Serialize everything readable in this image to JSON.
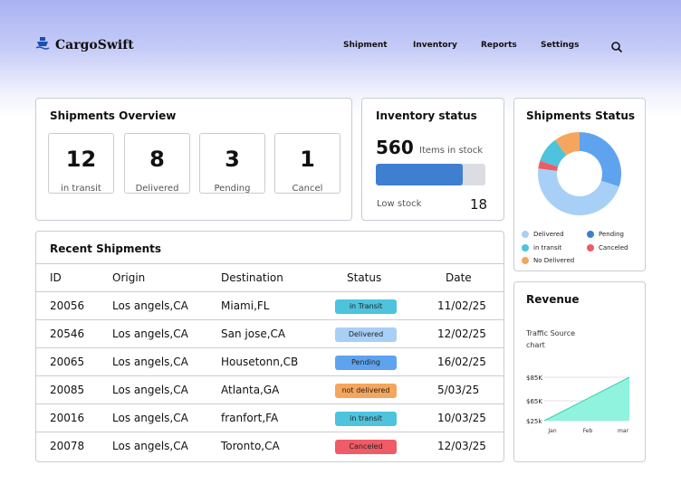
{
  "header": {
    "brand": "CargoSwift",
    "nav": [
      "Shipment",
      "Inventory",
      "Reports",
      "Settings"
    ]
  },
  "overview": {
    "title": "Shipments Overview",
    "stats": [
      {
        "value": "12",
        "label": "in transit"
      },
      {
        "value": "8",
        "label": "Delivered"
      },
      {
        "value": "3",
        "label": "Pending"
      },
      {
        "value": "1",
        "label": "Cancel"
      }
    ]
  },
  "inventory": {
    "title": "Inventory status",
    "count": "560",
    "count_label": "Items in stock",
    "stock_fill_fraction": 0.79,
    "low_label": "Low stock",
    "low_value": "18"
  },
  "status_chart": {
    "title": "Shipments Status",
    "legend": [
      {
        "label": "Delivered",
        "color": "#a8d0f7"
      },
      {
        "label": "Pending",
        "color": "#3f7fd0"
      },
      {
        "label": "in transit",
        "color": "#4dc3dd"
      },
      {
        "label": "Canceled",
        "color": "#ef5b67"
      },
      {
        "label": "No Delivered",
        "color": "#f6a55c"
      }
    ]
  },
  "chart_data": {
    "type": "pie",
    "categories": [
      "Pending",
      "Delivered",
      "Canceled",
      "in transit",
      "No Delivered"
    ],
    "values": [
      30,
      47,
      3,
      10,
      10
    ],
    "colors": [
      "#5fa3ee",
      "#a8d0f7",
      "#ef5b67",
      "#4dc3dd",
      "#f6a55c"
    ],
    "title": "Shipments Status"
  },
  "recent": {
    "title": "Recent Shipments",
    "columns": [
      "ID",
      "Origin",
      "Destination",
      "Status",
      "Date"
    ],
    "rows": [
      {
        "id": "20056",
        "origin": "Los angels,CA",
        "destination": "Miami,FL",
        "status": "in Transit",
        "date": "11/02/25",
        "color": "#4dc3dd"
      },
      {
        "id": "20546",
        "origin": "Los angels,CA",
        "destination": "San jose,CA",
        "status": "Delivered",
        "date": "12/02/25",
        "color": "#a8d0f7"
      },
      {
        "id": "20065",
        "origin": "Los angels,CA",
        "destination": "Housetonn,CB",
        "status": "Pending",
        "date": "16/02/25",
        "color": "#5fa3ee"
      },
      {
        "id": "20085",
        "origin": "Los angels,CA",
        "destination": "Atlanta,GA",
        "status": "not delivered",
        "date": "5/03/25",
        "color": "#f6a55c"
      },
      {
        "id": "20016",
        "origin": "Los angels,CA",
        "destination": "franfort,FA",
        "status": "in transit",
        "date": "10/03/25",
        "color": "#4dc3dd"
      },
      {
        "id": "20078",
        "origin": "Los angels,CA",
        "destination": "Toronto,CA",
        "status": "Canceled",
        "date": "12/03/25",
        "color": "#ef5b67"
      }
    ]
  },
  "revenue": {
    "title": "Revenue",
    "subtitle": "Traffic Source chart",
    "chart": {
      "type": "area",
      "x": [
        "Jan",
        "Feb",
        "mar"
      ],
      "y_ticks": [
        "$85K",
        "$65K",
        "$25k"
      ],
      "color": "#8ff3dd"
    }
  }
}
